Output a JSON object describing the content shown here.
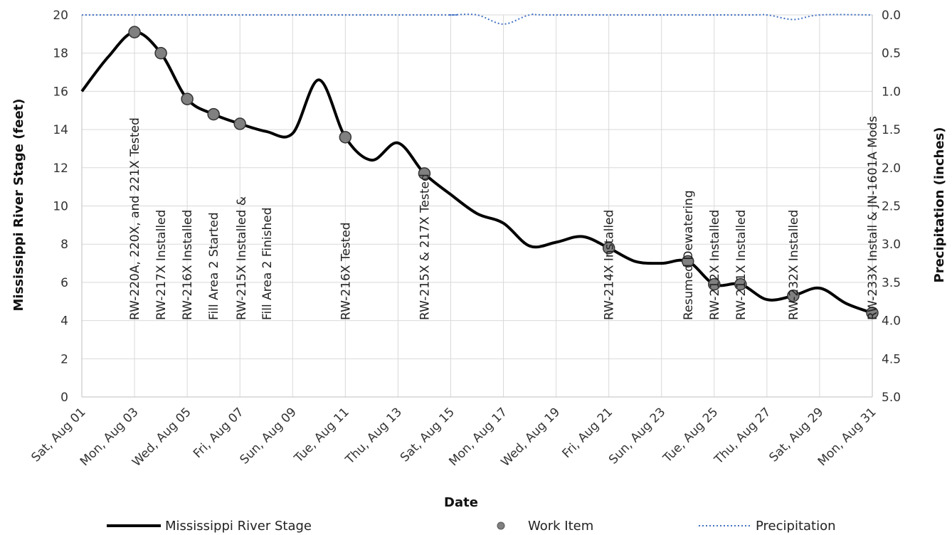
{
  "chart_data": {
    "type": "line",
    "xlabel": "Date",
    "ylabel": "Mississippi River Stage (feet)",
    "y2label": "Precipitation (inches)",
    "ylim": [
      0,
      20
    ],
    "y2lim": [
      5.0,
      0.0
    ],
    "y2_inverted": true,
    "xlim": [
      "2020-08-01",
      "2020-08-31"
    ],
    "grid": true,
    "yticks": [
      "0",
      "2",
      "4",
      "6",
      "8",
      "10",
      "12",
      "14",
      "16",
      "18",
      "20"
    ],
    "y2ticks": [
      "0.0",
      "0.5",
      "1.0",
      "1.5",
      "2.0",
      "2.5",
      "3.0",
      "3.5",
      "4.0",
      "4.5",
      "5.0"
    ],
    "xticks": [
      {
        "date": "2020-08-01",
        "label": "Sat, Aug 01"
      },
      {
        "date": "2020-08-03",
        "label": "Mon, Aug 03"
      },
      {
        "date": "2020-08-05",
        "label": "Wed, Aug 05"
      },
      {
        "date": "2020-08-07",
        "label": "Fri, Aug 07"
      },
      {
        "date": "2020-08-09",
        "label": "Sun, Aug 09"
      },
      {
        "date": "2020-08-11",
        "label": "Tue, Aug 11"
      },
      {
        "date": "2020-08-13",
        "label": "Thu, Aug 13"
      },
      {
        "date": "2020-08-15",
        "label": "Sat, Aug 15"
      },
      {
        "date": "2020-08-17",
        "label": "Mon, Aug 17"
      },
      {
        "date": "2020-08-19",
        "label": "Wed, Aug 19"
      },
      {
        "date": "2020-08-21",
        "label": "Fri, Aug 21"
      },
      {
        "date": "2020-08-23",
        "label": "Sun, Aug 23"
      },
      {
        "date": "2020-08-25",
        "label": "Tue, Aug 25"
      },
      {
        "date": "2020-08-27",
        "label": "Thu, Aug 27"
      },
      {
        "date": "2020-08-29",
        "label": "Sat, Aug 29"
      },
      {
        "date": "2020-08-31",
        "label": "Mon, Aug 31"
      }
    ],
    "series": [
      {
        "name": "Mississippi River Stage",
        "color": "#000000",
        "axis": "left",
        "points": [
          [
            "2020-08-01",
            16.0
          ],
          [
            "2020-08-02",
            17.8
          ],
          [
            "2020-08-03",
            19.1
          ],
          [
            "2020-08-04",
            18.0
          ],
          [
            "2020-08-05",
            15.6
          ],
          [
            "2020-08-06",
            14.8
          ],
          [
            "2020-08-07",
            14.3
          ],
          [
            "2020-08-08",
            13.9
          ],
          [
            "2020-08-09",
            13.8
          ],
          [
            "2020-08-10",
            16.6
          ],
          [
            "2020-08-11",
            13.6
          ],
          [
            "2020-08-12",
            12.4
          ],
          [
            "2020-08-13",
            13.3
          ],
          [
            "2020-08-14",
            11.7
          ],
          [
            "2020-08-15",
            10.6
          ],
          [
            "2020-08-16",
            9.6
          ],
          [
            "2020-08-17",
            9.1
          ],
          [
            "2020-08-18",
            7.9
          ],
          [
            "2020-08-19",
            8.1
          ],
          [
            "2020-08-20",
            8.4
          ],
          [
            "2020-08-21",
            7.8
          ],
          [
            "2020-08-22",
            7.1
          ],
          [
            "2020-08-23",
            7.0
          ],
          [
            "2020-08-24",
            7.1
          ],
          [
            "2020-08-25",
            5.9
          ],
          [
            "2020-08-26",
            5.9
          ],
          [
            "2020-08-27",
            5.1
          ],
          [
            "2020-08-28",
            5.3
          ],
          [
            "2020-08-29",
            5.7
          ],
          [
            "2020-08-30",
            4.9
          ],
          [
            "2020-08-31",
            4.4
          ]
        ]
      },
      {
        "name": "Work Item",
        "color": "#808080",
        "axis": "left",
        "points": [
          {
            "date": "2020-08-03",
            "value": 19.1,
            "label": "RW-220A, 220X, and 221X Tested"
          },
          {
            "date": "2020-08-04",
            "value": 18.0,
            "label": "RW-217X Installed"
          },
          {
            "date": "2020-08-05",
            "value": 15.6,
            "label": "RW-216X Installed"
          },
          {
            "date": "2020-08-06",
            "value": 14.8,
            "label": "Fill Area 2 Started"
          },
          {
            "date": "2020-08-07",
            "value": 14.3,
            "label": "RW-215X Installed &",
            "label2": "Fill Area 2 Finished"
          },
          {
            "date": "2020-08-11",
            "value": 13.6,
            "label": "RW-216X Tested"
          },
          {
            "date": "2020-08-14",
            "value": 11.7,
            "label": "RW-215X & 217X Tested"
          },
          {
            "date": "2020-08-21",
            "value": 7.8,
            "label": "RW-214X Installed"
          },
          {
            "date": "2020-08-24",
            "value": 7.1,
            "label": "Resumed Dewatering"
          },
          {
            "date": "2020-08-25",
            "value": 5.9,
            "label": "RW-212X Installed"
          },
          {
            "date": "2020-08-26",
            "value": 5.9,
            "label": "RW-211X Installed"
          },
          {
            "date": "2020-08-28",
            "value": 5.3,
            "label": "RW-232X Installed"
          },
          {
            "date": "2020-08-31",
            "value": 4.4,
            "label": "RW-233X Install & JN-1601A Mods"
          }
        ]
      },
      {
        "name": "Precipitation",
        "color": "#4472c4",
        "axis": "right",
        "points": [
          [
            "2020-08-01",
            0.0
          ],
          [
            "2020-08-14",
            0.0
          ],
          [
            "2020-08-15",
            0.0
          ],
          [
            "2020-08-16",
            0.0
          ],
          [
            "2020-08-17",
            0.12
          ],
          [
            "2020-08-18",
            0.0
          ],
          [
            "2020-08-19",
            0.0
          ],
          [
            "2020-08-26",
            0.0
          ],
          [
            "2020-08-27",
            0.0
          ],
          [
            "2020-08-28",
            0.06
          ],
          [
            "2020-08-29",
            0.0
          ],
          [
            "2020-08-31",
            0.0
          ]
        ]
      }
    ],
    "legend_position": "bottom"
  }
}
